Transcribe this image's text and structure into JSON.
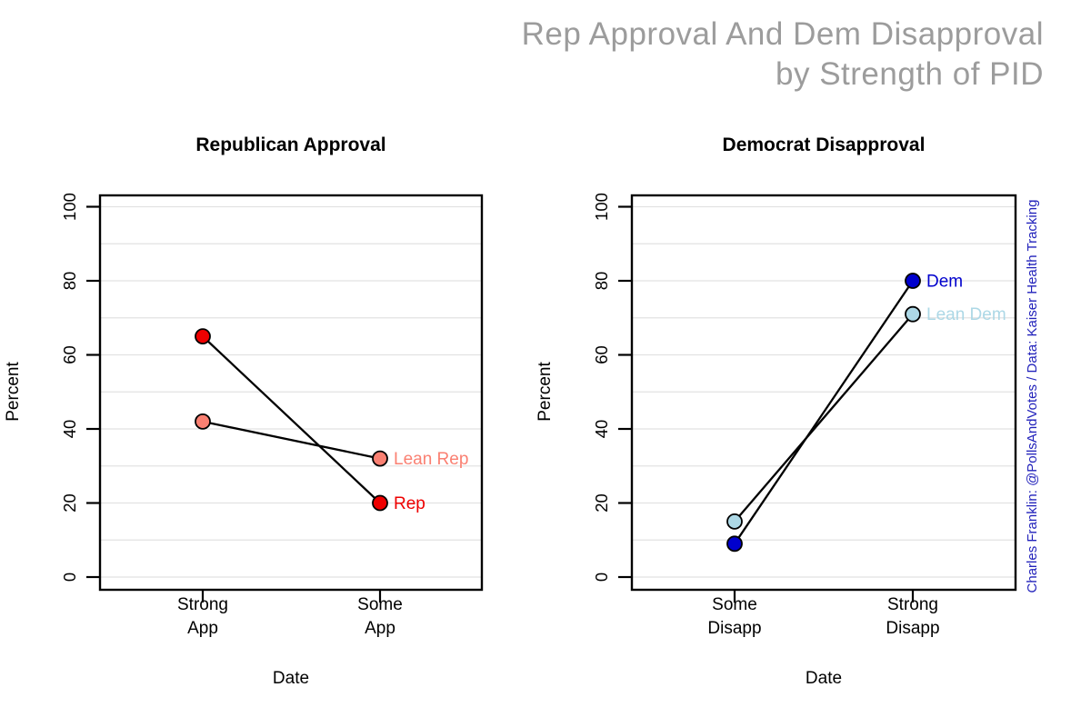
{
  "title": {
    "line1": "Rep Approval And Dem Disapproval",
    "line2": "by Strength of PID",
    "color": "#9c9c9c"
  },
  "attribution": {
    "text": "Charles Franklin: @PollsAndVotes / Data: Kaiser Health Tracking",
    "color": "#2222bb"
  },
  "chart_data": [
    {
      "type": "line",
      "title": "Republican Approval",
      "xlabel": "Date",
      "ylabel": "Percent",
      "categories": [
        "Strong App",
        "Some App"
      ],
      "yticks": [
        0,
        20,
        40,
        60,
        80,
        100
      ],
      "ylim": [
        0,
        100
      ],
      "grid_step": 10,
      "grid_color": "#e2e2e2",
      "line_color": "#000000",
      "legend_position": "end-labels-right",
      "series": [
        {
          "name": "Rep",
          "values": [
            65,
            20
          ],
          "color": "#ee0000"
        },
        {
          "name": "Lean Rep",
          "values": [
            42,
            32
          ],
          "color": "#fa8072"
        }
      ]
    },
    {
      "type": "line",
      "title": "Democrat Disapproval",
      "xlabel": "Date",
      "ylabel": "Percent",
      "categories": [
        "Some Disapp",
        "Strong Disapp"
      ],
      "yticks": [
        0,
        20,
        40,
        60,
        80,
        100
      ],
      "ylim": [
        0,
        100
      ],
      "grid_step": 10,
      "grid_color": "#e2e2e2",
      "line_color": "#000000",
      "legend_position": "end-labels-right",
      "series": [
        {
          "name": "Dem",
          "values": [
            9,
            80
          ],
          "color": "#0000cd"
        },
        {
          "name": "Lean Dem",
          "values": [
            15,
            71
          ],
          "color": "#add8e6"
        }
      ]
    }
  ]
}
